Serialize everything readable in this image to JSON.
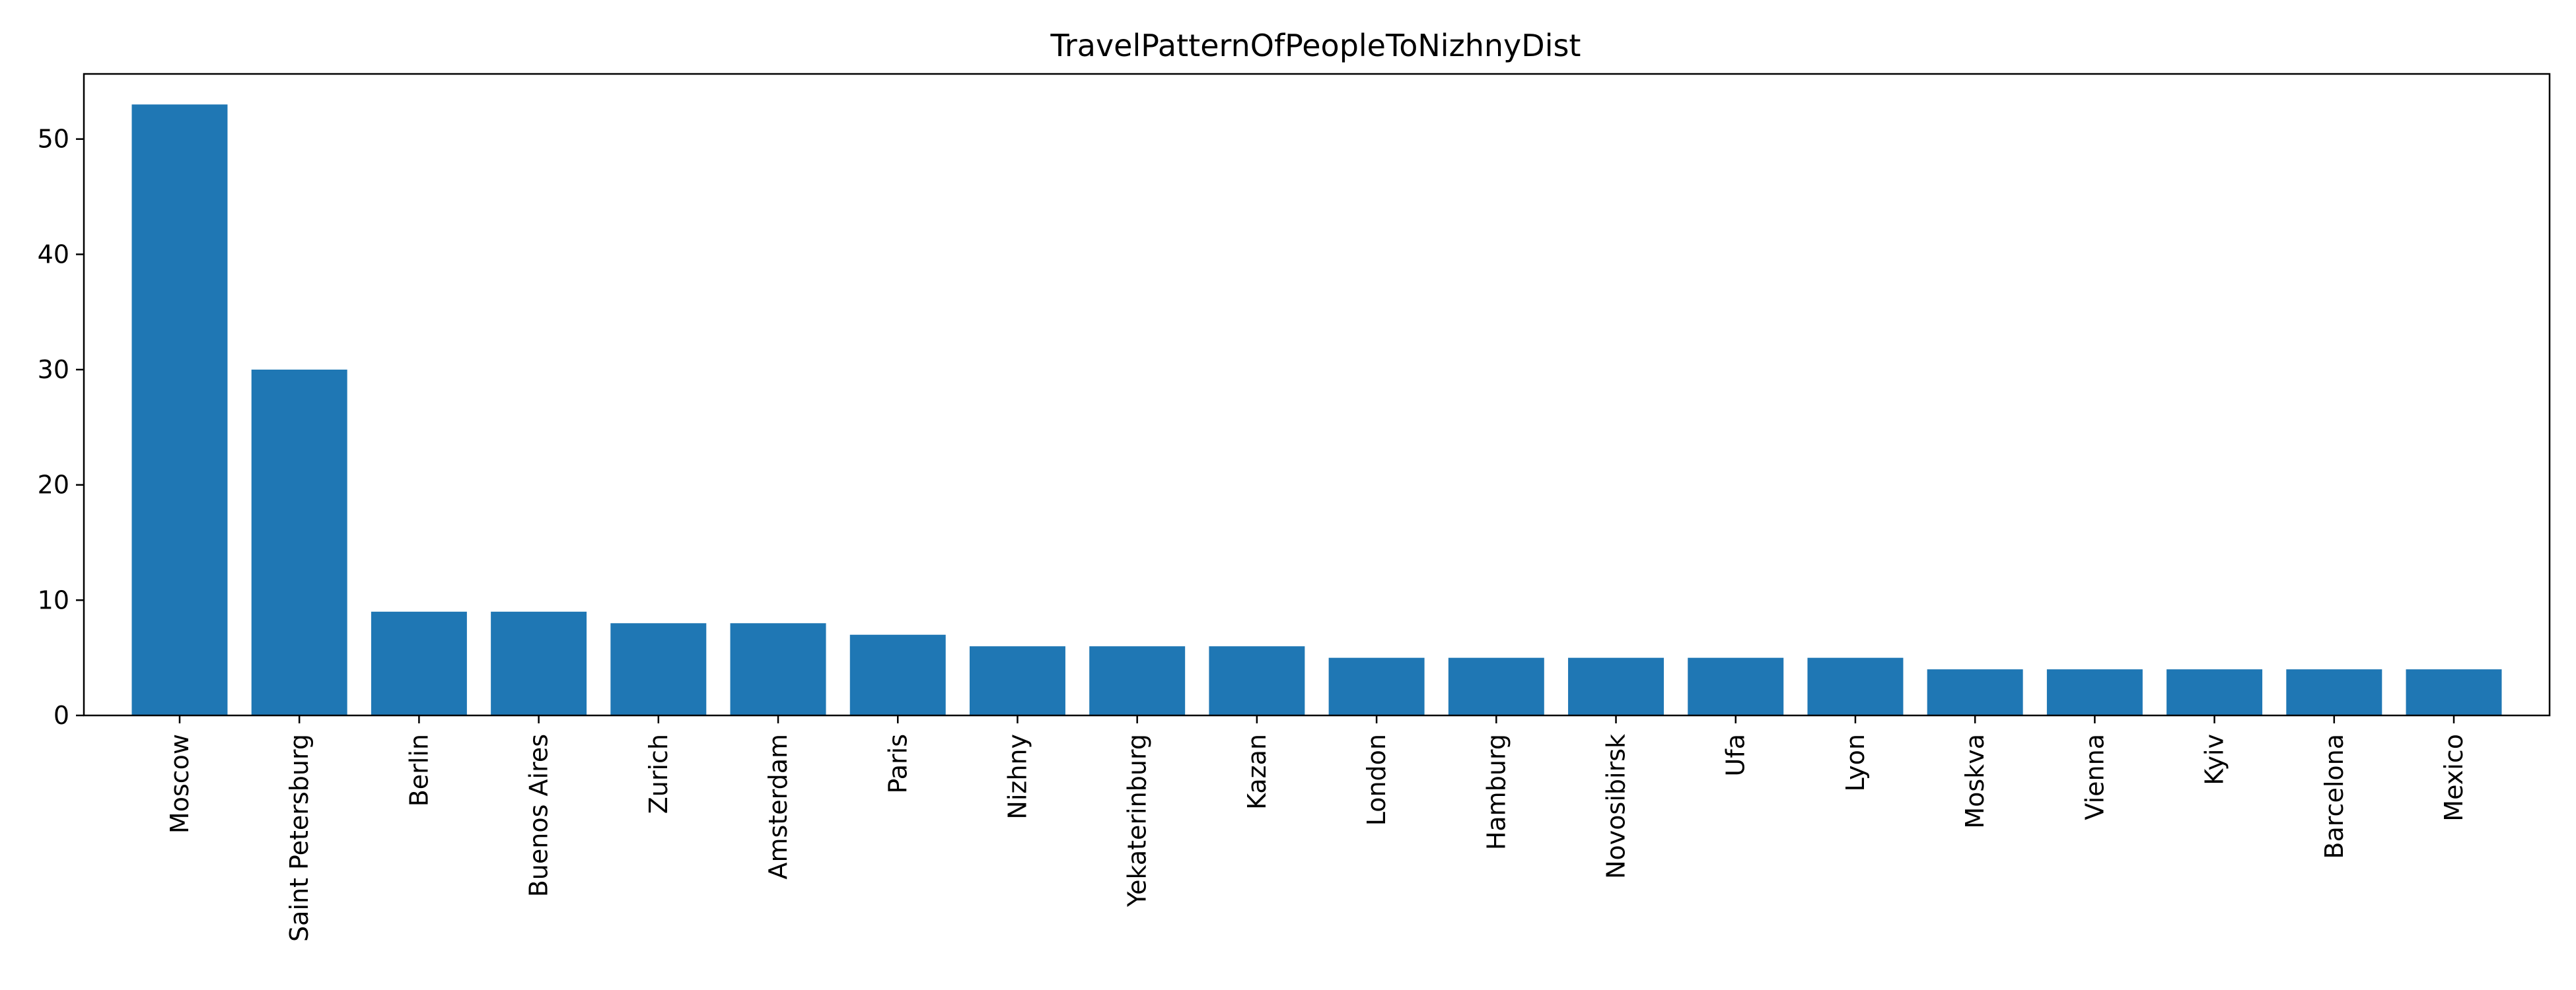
{
  "chart_data": {
    "type": "bar",
    "title": "TravelPatternOfPeopleToNizhnyDist",
    "xlabel": "",
    "ylabel": "",
    "categories": [
      "Moscow",
      "Saint Petersburg",
      "Berlin",
      "Buenos Aires",
      "Zurich",
      "Amsterdam",
      "Paris",
      "Nizhny",
      "Yekaterinburg",
      "Kazan",
      "London",
      "Hamburg",
      "Novosibirsk",
      "Ufa",
      "Lyon",
      "Moskva",
      "Vienna",
      "Kyiv",
      "Barcelona",
      "Mexico"
    ],
    "values": [
      53,
      30,
      9,
      9,
      8,
      8,
      7,
      6,
      6,
      6,
      5,
      5,
      5,
      5,
      5,
      4,
      4,
      4,
      4,
      4
    ],
    "ylim": [
      0,
      55.65
    ],
    "yticks": [
      0,
      10,
      20,
      30,
      40,
      50
    ],
    "bar_color": "#1f77b4",
    "grid": false,
    "legend": "none"
  }
}
